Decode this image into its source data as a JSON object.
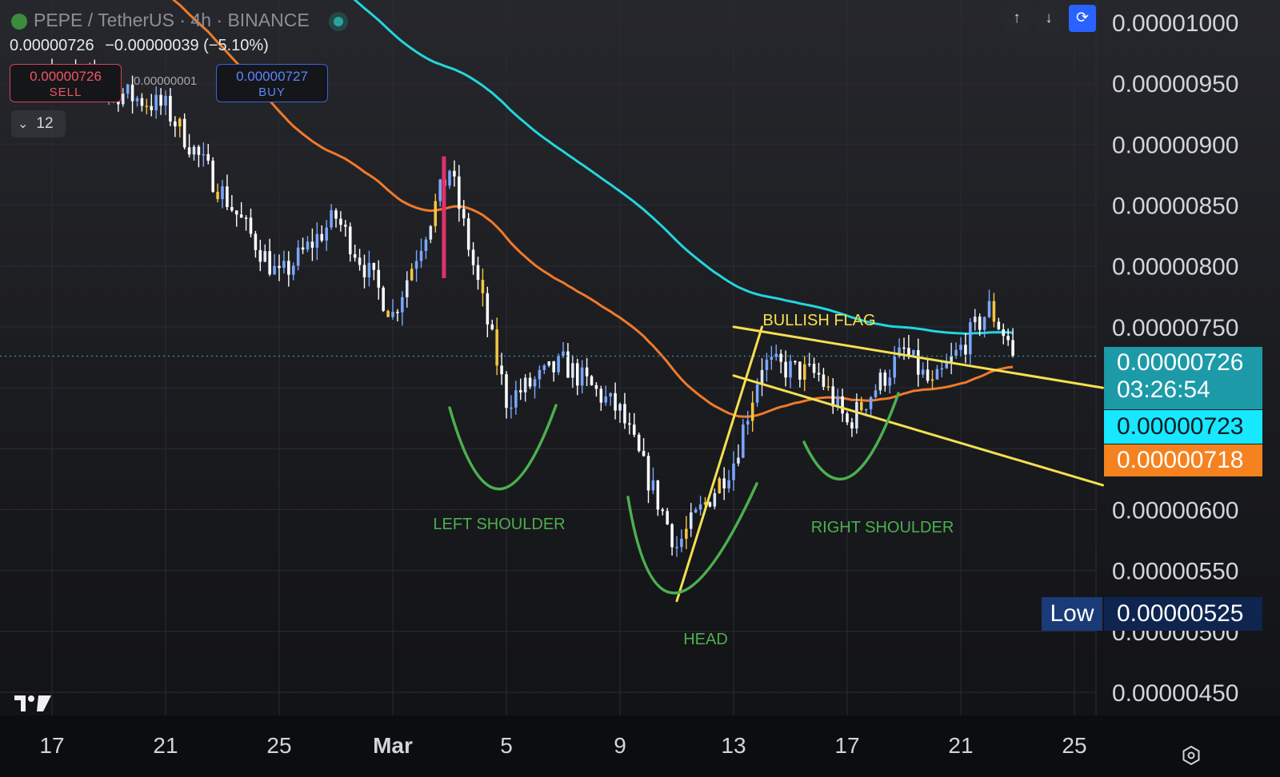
{
  "header": {
    "symbol": "PEPE / TetherUS · 4h · BINANCE",
    "ohlc_close": "0.00000726",
    "ohlc_change": "−0.00000039 (−5.10%)"
  },
  "trade": {
    "sell_price": "0.00000726",
    "sell_label": "SELL",
    "spread": "0.00000001",
    "buy_price": "0.00000727",
    "buy_label": "BUY"
  },
  "indicators_toggle": {
    "count": "12"
  },
  "toolbar": {
    "up_icon": "arrow-up-icon",
    "down_icon": "arrow-down-icon",
    "sync_icon": "sync-icon"
  },
  "price_tags": {
    "last_price": "0.00000726",
    "countdown": "03:26:54",
    "ema_cyan": "0.00000723",
    "ema_orange": "0.00000718",
    "low_label": "Low",
    "low_value": "0.00000525"
  },
  "colors": {
    "bull_candle": "#7aa6ff",
    "bull_candle_light": "#d9e6ff",
    "bear_candle": "#ffffff",
    "highlight_candle": "#f5c542",
    "magenta_candle": "#e0316b",
    "ema_cyan": "#22d6dd",
    "ema_orange": "#f07a2a",
    "annotation_green": "#4caf50",
    "annotation_yellow": "#f5e050",
    "last_price_tag": "#1d9aa8"
  },
  "chart_data": {
    "type": "candlestick",
    "title": "PEPE / TetherUS · 4h · BINANCE",
    "y_axis": {
      "labels": [
        "0.00001000",
        "0.00000950",
        "0.00000900",
        "0.00000850",
        "0.00000800",
        "0.00000750",
        "0.00000600",
        "0.00000550",
        "0.00000500",
        "0.00000450"
      ],
      "values": [
        1e-05,
        9.5e-06,
        9e-06,
        8.5e-06,
        8e-06,
        7.5e-06,
        6e-06,
        5.5e-06,
        5e-06,
        4.5e-06
      ],
      "range": [
        4.3e-06,
        1.01e-05
      ]
    },
    "x_axis": {
      "labels": [
        "17",
        "21",
        "25",
        "Mar",
        "5",
        "9",
        "13",
        "17",
        "21",
        "25"
      ]
    },
    "last_price": 7.26e-06,
    "price_key_points": [
      {
        "date": "Feb 17",
        "price": 9.6e-06
      },
      {
        "date": "Feb 21",
        "price": 9.3e-06
      },
      {
        "date": "Feb 25",
        "price": 7.9e-06
      },
      {
        "date": "Feb 27",
        "price": 8.4e-06
      },
      {
        "date": "Feb 29",
        "price": 7.6e-06
      },
      {
        "date": "Mar 2",
        "price": 8.8e-06
      },
      {
        "date": "Mar 4",
        "price": 6.9e-06
      },
      {
        "date": "Mar 6",
        "price": 7.2e-06
      },
      {
        "date": "Mar 8",
        "price": 6.8e-06
      },
      {
        "date": "Mar 10",
        "price": 5.7e-06
      },
      {
        "date": "Mar 12",
        "price": 6.4e-06
      },
      {
        "date": "Mar 13",
        "price": 7.2e-06
      },
      {
        "date": "Mar 15",
        "price": 7.1e-06
      },
      {
        "date": "Mar 16",
        "price": 6.7e-06
      },
      {
        "date": "Mar 18",
        "price": 7.3e-06
      },
      {
        "date": "Mar 19",
        "price": 7e-06
      },
      {
        "date": "Mar 21",
        "price": 7.65e-06
      },
      {
        "date": "Mar 22",
        "price": 7.26e-06
      }
    ],
    "annotations": [
      "BULLISH FLAG",
      "LEFT SHOULDER",
      "HEAD",
      "RIGHT SHOULDER"
    ],
    "series": [
      {
        "name": "EMA (cyan)",
        "last": 7.23e-06
      },
      {
        "name": "EMA (orange)",
        "last": 7.18e-06
      }
    ]
  }
}
